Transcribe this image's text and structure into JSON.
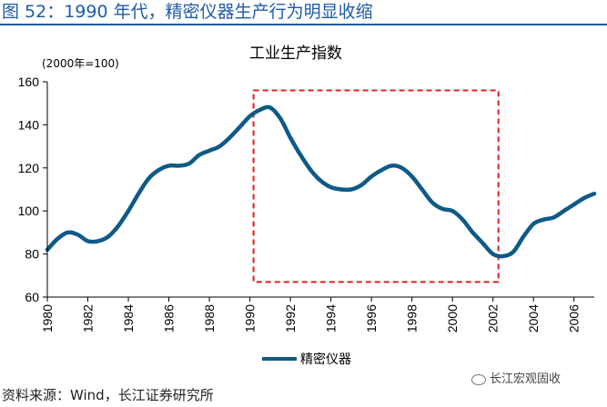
{
  "page": {
    "figure_title": "图 52：1990 年代，精密仪器生产行为明显收缩",
    "source": "资料来源：Wind，长江证券研究所",
    "watermark": "长江宏观固收"
  },
  "colors": {
    "title_blue": "#1f5ba8",
    "line": "#0f5a86",
    "highlight_box": "#e02020"
  },
  "chart_data": {
    "type": "line",
    "title": "工业生产指数",
    "unit_label": "(2000年=100)",
    "xlabel": "",
    "ylabel": "",
    "xlim": [
      1980,
      2007
    ],
    "ylim": [
      60,
      160
    ],
    "y_ticks": [
      60,
      80,
      100,
      120,
      140,
      160
    ],
    "x_ticks": [
      1980,
      1982,
      1984,
      1986,
      1988,
      1990,
      1992,
      1994,
      1996,
      1998,
      2000,
      2002,
      2004,
      2006
    ],
    "legend_position": "bottom",
    "grid": false,
    "series": [
      {
        "name": "精密仪器",
        "x": [
          1980,
          1980.5,
          1981,
          1981.5,
          1982,
          1982.5,
          1983,
          1983.5,
          1984,
          1984.5,
          1985,
          1985.5,
          1986,
          1986.5,
          1987,
          1987.5,
          1988,
          1988.5,
          1989,
          1989.5,
          1990,
          1990.5,
          1991,
          1991.5,
          1992,
          1992.5,
          1993,
          1993.5,
          1994,
          1994.5,
          1995,
          1995.5,
          1996,
          1996.5,
          1997,
          1997.5,
          1998,
          1998.5,
          1999,
          1999.5,
          2000,
          2000.5,
          2001,
          2001.5,
          2002,
          2002.5,
          2003,
          2003.5,
          2004,
          2004.5,
          2005,
          2005.5,
          2006,
          2006.5,
          2007
        ],
        "y": [
          82,
          87,
          90,
          89,
          86,
          86,
          88,
          93,
          100,
          108,
          115,
          119,
          121,
          121,
          122,
          126,
          128,
          130,
          134,
          139,
          144,
          147,
          148,
          143,
          134,
          126,
          119,
          114,
          111,
          110,
          110,
          112,
          116,
          119,
          121,
          120,
          116,
          110,
          104,
          101,
          100,
          96,
          90,
          85,
          80,
          79,
          81,
          88,
          94,
          96,
          97,
          100,
          103,
          106,
          108
        ]
      }
    ],
    "highlight_box": {
      "x_start": 1990,
      "x_end": 2002,
      "y_bottom": 67,
      "y_top": 156
    }
  }
}
